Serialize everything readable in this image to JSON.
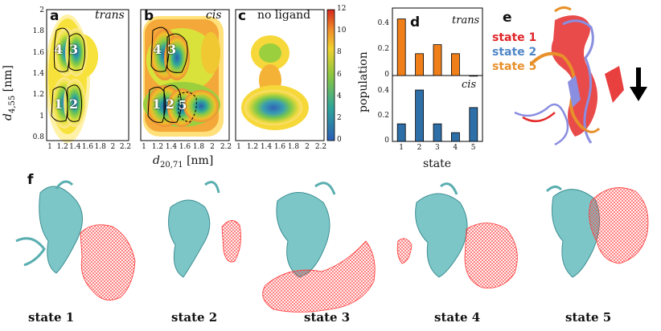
{
  "panels": {
    "a": {
      "letter": "a",
      "tag": "trans",
      "state_labels": [
        "4",
        "3",
        "1",
        "2"
      ]
    },
    "b": {
      "letter": "b",
      "tag": "cis",
      "state_labels": [
        "4",
        "3",
        "1",
        "2",
        "5"
      ]
    },
    "c": {
      "letter": "c",
      "tag": "no ligand"
    },
    "d": {
      "letter": "d",
      "tag_top": "trans",
      "tag_bottom": "cis"
    },
    "e": {
      "letter": "e",
      "legend": [
        {
          "label": "state 1",
          "color": "#e0262a"
        },
        {
          "label": "state 2",
          "color": "#4f86c6"
        },
        {
          "label": "state 5",
          "color": "#e8902a"
        }
      ]
    },
    "f": {
      "letter": "f"
    }
  },
  "heatmap_axes": {
    "xlabel": "d",
    "xlabel_sub": "20,71",
    "xlabel_unit": "[nm]",
    "ylabel": "d",
    "ylabel_sub": "4,55",
    "ylabel_unit": "[nm]",
    "xticks": [
      "1",
      "1.2",
      "1.4",
      "1.6",
      "1.8",
      "2",
      "2.2"
    ],
    "yticks": [
      "2",
      "1.8",
      "1.6",
      "1.4",
      "1.2",
      "1",
      "0.8"
    ],
    "colorbar_ticks": [
      "12",
      "10",
      "8",
      "6",
      "4",
      "2",
      "0"
    ]
  },
  "chart_data": {
    "type": "bar",
    "xlabel": "state",
    "ylabel": "population",
    "categories": [
      "1",
      "2",
      "3",
      "4",
      "5"
    ],
    "ylim": [
      0,
      0.5
    ],
    "yticks": [
      "0.4",
      "0.2",
      "0"
    ],
    "series": [
      {
        "name": "trans",
        "color": "#f07f1a",
        "values": [
          0.44,
          0.17,
          0.24,
          0.17,
          0.0
        ]
      },
      {
        "name": "cis",
        "color": "#2f6fa8",
        "values": [
          0.14,
          0.41,
          0.14,
          0.07,
          0.27
        ]
      }
    ]
  },
  "structures": [
    {
      "label": "state 1"
    },
    {
      "label": "state 2"
    },
    {
      "label": "state 3"
    },
    {
      "label": "state 4"
    },
    {
      "label": "state 5"
    }
  ]
}
